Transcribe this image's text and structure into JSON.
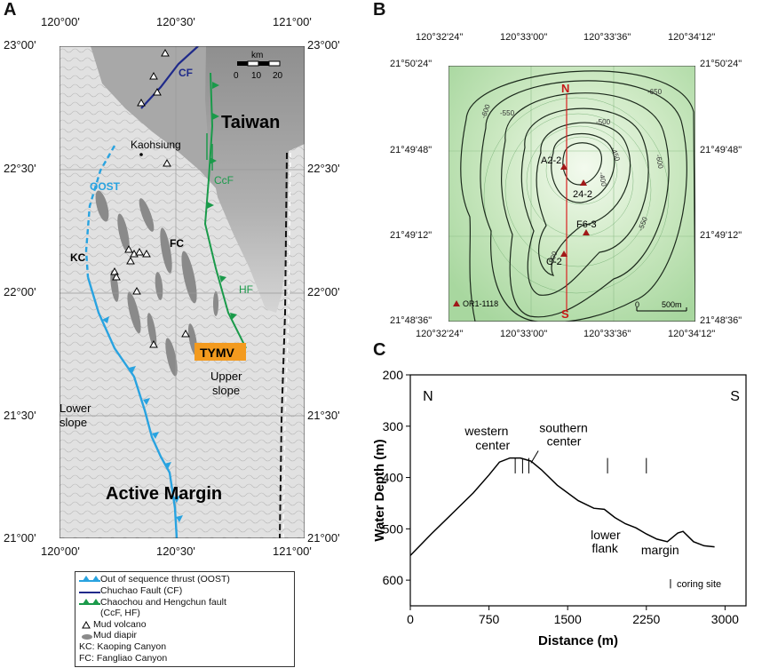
{
  "panels": {
    "a": {
      "letter": "A",
      "lon_ticks_top": [
        "120°00'",
        "120°30'",
        "121°00'"
      ],
      "lon_ticks_bottom": [
        "120°00'",
        "120°30'",
        "121°00'"
      ],
      "lat_ticks_left": [
        "23°00'",
        "22°30'",
        "22°00'",
        "21°30'",
        "21°00'"
      ],
      "lat_ticks_right": [
        "23°00'",
        "22°30'",
        "22°00'",
        "21°30'",
        "21°00'"
      ],
      "scale_bar": {
        "unit": "km",
        "labels": [
          "0",
          "10",
          "20"
        ]
      },
      "labels": {
        "taiwan": "Taiwan",
        "kaohsiung": "Kaohsiung",
        "oost": "OOST",
        "cf": "CF",
        "ccf": "CcF",
        "hf": "HF",
        "kc": "KC",
        "fc": "FC",
        "tymv": "TYMV",
        "lower_slope_1": "Lower",
        "lower_slope_2": "slope",
        "upper_slope_1": "Upper",
        "upper_slope_2": "slope",
        "active_margin": "Active Margin"
      },
      "colors": {
        "oost": "#29a3e0",
        "cf": "#1f2a8a",
        "ccf": "#1a9a4a",
        "tymv": "#f39a1e",
        "land": "#9a9a9a"
      },
      "legend": [
        {
          "icon": "blue-triangles",
          "text": "Out of sequence thrust (OOST)"
        },
        {
          "icon": "navy-line",
          "text": "Chuchao Fault (CF)"
        },
        {
          "icon": "green-triangles",
          "text": "Chaochou and Hengchun fault"
        },
        {
          "icon": "none",
          "text": "(CcF, HF)"
        },
        {
          "icon": "triangle-outline",
          "text": "Mud volcano"
        },
        {
          "icon": "gray-ellipse",
          "text": "Mud diapir"
        },
        {
          "icon": "none",
          "text": "KC: Kaoping Canyon"
        },
        {
          "icon": "none",
          "text": "FC: Fangliao Canyon"
        }
      ]
    },
    "b": {
      "letter": "B",
      "lon_ticks_top": [
        "120°32'24\"",
        "120°33'00\"",
        "120°33'36\"",
        "120°34'12\""
      ],
      "lon_ticks_bottom": [
        "120°32'24\"",
        "120°33'00\"",
        "120°33'36\"",
        "120°34'12\""
      ],
      "lat_ticks_left": [
        "21°50'24\"",
        "21°49'48\"",
        "21°49'12\"",
        "21°48'36\""
      ],
      "lat_ticks_right": [
        "21°50'24\"",
        "21°49'48\"",
        "21°49'12\"",
        "21°48'36\""
      ],
      "contour_labels": [
        "-650",
        "-600",
        "-550",
        "-500",
        "-450",
        "-400",
        "-600",
        "-550",
        "-500"
      ],
      "sites": [
        "A2-2",
        "24-2",
        "F6-3",
        "C-2"
      ],
      "section_n": "N",
      "section_s": "S",
      "legend_site": "OR1-1118",
      "scale_labels": [
        "0",
        "500m"
      ]
    },
    "c": {
      "letter": "C",
      "chart_data": {
        "type": "line",
        "ylabel": "Water Depth (m)",
        "xlabel": "Distance (m)",
        "xlim": [
          0,
          3200
        ],
        "ylim": [
          200,
          650
        ],
        "y_inverted": true,
        "x_ticks": [
          0,
          750,
          1500,
          2250,
          3000
        ],
        "y_ticks": [
          200,
          300,
          400,
          500,
          600
        ],
        "x": [
          0,
          200,
          400,
          600,
          750,
          850,
          950,
          1050,
          1150,
          1250,
          1400,
          1600,
          1750,
          1850,
          1950,
          2050,
          2150,
          2250,
          2350,
          2450,
          2550,
          2600,
          2700,
          2800,
          2900
        ],
        "y": [
          552,
          510,
          470,
          430,
          395,
          370,
          362,
          362,
          368,
          385,
          415,
          445,
          460,
          462,
          478,
          490,
          498,
          510,
          520,
          525,
          508,
          505,
          525,
          533,
          535
        ],
        "end_labels": {
          "left": "N",
          "right": "S"
        },
        "annotations": [
          {
            "lines": [
              "western",
              "center"
            ]
          },
          {
            "lines": [
              "southern",
              "center"
            ]
          },
          {
            "lines": [
              "lower",
              "flank"
            ]
          },
          {
            "lines": [
              "margin"
            ]
          }
        ],
        "coring_sites_x": [
          1000,
          1070,
          1130,
          1880,
          2250
        ],
        "legend": "coring site"
      }
    }
  }
}
